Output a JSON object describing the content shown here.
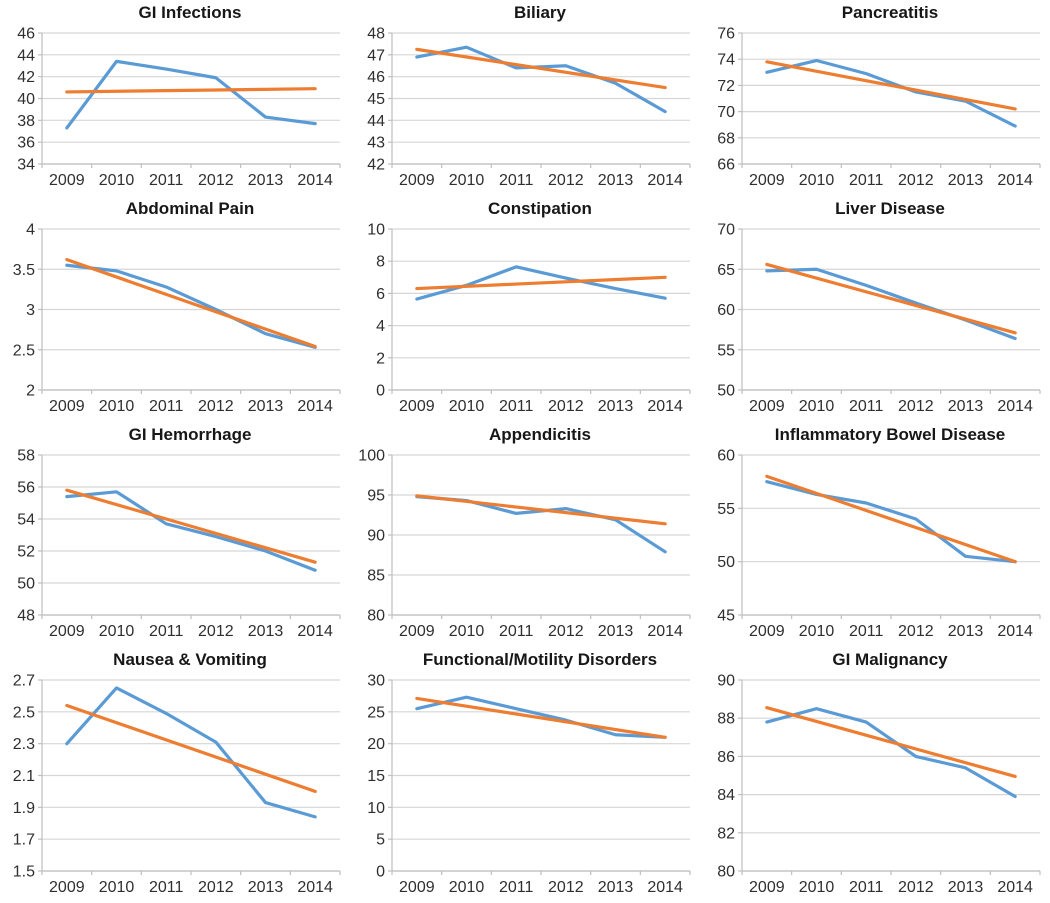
{
  "colors": {
    "series_blue": "#5B9BD5",
    "trend_orange": "#ED7D31",
    "gridline": "#D6D6D6",
    "axis": "#BFBFBF",
    "tick_text": "#2F2F2F",
    "title_text": "#171717",
    "background": "#FFFFFF"
  },
  "chart_data": [
    {
      "type": "line",
      "title": "GI Infections",
      "categories": [
        "2009",
        "2010",
        "2011",
        "2012",
        "2013",
        "2014"
      ],
      "ylim": [
        34,
        46
      ],
      "yticks": [
        "34",
        "36",
        "38",
        "40",
        "42",
        "44",
        "46"
      ],
      "grid": true,
      "legend": "none",
      "series": [
        {
          "name": "observed",
          "role": "data",
          "values": [
            37.3,
            43.4,
            42.7,
            41.9,
            38.3,
            37.7
          ]
        },
        {
          "name": "linear-trend",
          "role": "trend",
          "values": [
            40.6,
            40.9
          ]
        }
      ]
    },
    {
      "type": "line",
      "title": "Biliary",
      "categories": [
        "2009",
        "2010",
        "2011",
        "2012",
        "2013",
        "2014"
      ],
      "ylim": [
        42,
        48
      ],
      "yticks": [
        "42",
        "43",
        "44",
        "45",
        "46",
        "47",
        "48"
      ],
      "grid": true,
      "legend": "none",
      "series": [
        {
          "name": "observed",
          "role": "data",
          "values": [
            46.9,
            47.35,
            46.4,
            46.5,
            45.7,
            44.4
          ]
        },
        {
          "name": "linear-trend",
          "role": "trend",
          "values": [
            47.25,
            45.5
          ]
        }
      ]
    },
    {
      "type": "line",
      "title": "Pancreatitis",
      "categories": [
        "2009",
        "2010",
        "2011",
        "2012",
        "2013",
        "2014"
      ],
      "ylim": [
        66,
        76
      ],
      "yticks": [
        "66",
        "68",
        "70",
        "72",
        "74",
        "76"
      ],
      "grid": true,
      "legend": "none",
      "series": [
        {
          "name": "observed",
          "role": "data",
          "values": [
            73.0,
            73.9,
            72.9,
            71.5,
            70.8,
            68.9
          ]
        },
        {
          "name": "linear-trend",
          "role": "trend",
          "values": [
            73.8,
            70.2
          ]
        }
      ]
    },
    {
      "type": "line",
      "title": "Abdominal Pain",
      "categories": [
        "2009",
        "2010",
        "2011",
        "2012",
        "2013",
        "2014"
      ],
      "ylim": [
        2,
        4
      ],
      "yticks": [
        "2",
        "2.5",
        "3",
        "3.5",
        "4"
      ],
      "grid": true,
      "legend": "none",
      "series": [
        {
          "name": "observed",
          "role": "data",
          "values": [
            3.55,
            3.48,
            3.28,
            3.0,
            2.7,
            2.53
          ]
        },
        {
          "name": "linear-trend",
          "role": "trend",
          "values": [
            3.62,
            2.54
          ]
        }
      ]
    },
    {
      "type": "line",
      "title": "Constipation",
      "categories": [
        "2009",
        "2010",
        "2011",
        "2012",
        "2013",
        "2014"
      ],
      "ylim": [
        0,
        10
      ],
      "yticks": [
        "0",
        "2",
        "4",
        "6",
        "8",
        "10"
      ],
      "grid": true,
      "legend": "none",
      "series": [
        {
          "name": "observed",
          "role": "data",
          "values": [
            5.65,
            6.5,
            7.65,
            6.95,
            6.3,
            5.7
          ]
        },
        {
          "name": "linear-trend",
          "role": "trend",
          "values": [
            6.3,
            7.0
          ]
        }
      ]
    },
    {
      "type": "line",
      "title": "Liver Disease",
      "categories": [
        "2009",
        "2010",
        "2011",
        "2012",
        "2013",
        "2014"
      ],
      "ylim": [
        50,
        70
      ],
      "yticks": [
        "50",
        "55",
        "60",
        "65",
        "70"
      ],
      "grid": true,
      "legend": "none",
      "series": [
        {
          "name": "observed",
          "role": "data",
          "values": [
            64.8,
            65.0,
            63.0,
            60.8,
            58.7,
            56.4
          ]
        },
        {
          "name": "linear-trend",
          "role": "trend",
          "values": [
            65.6,
            57.1
          ]
        }
      ]
    },
    {
      "type": "line",
      "title": "GI Hemorrhage",
      "categories": [
        "2009",
        "2010",
        "2011",
        "2012",
        "2013",
        "2014"
      ],
      "ylim": [
        48,
        58
      ],
      "yticks": [
        "48",
        "50",
        "52",
        "54",
        "56",
        "58"
      ],
      "grid": true,
      "legend": "none",
      "series": [
        {
          "name": "observed",
          "role": "data",
          "values": [
            55.4,
            55.7,
            53.7,
            52.9,
            52.0,
            50.8
          ]
        },
        {
          "name": "linear-trend",
          "role": "trend",
          "values": [
            55.8,
            51.3
          ]
        }
      ]
    },
    {
      "type": "line",
      "title": "Appendicitis",
      "categories": [
        "2009",
        "2010",
        "2011",
        "2012",
        "2013",
        "2014"
      ],
      "ylim": [
        80,
        100
      ],
      "yticks": [
        "80",
        "85",
        "90",
        "95",
        "100"
      ],
      "grid": true,
      "legend": "none",
      "series": [
        {
          "name": "observed",
          "role": "data",
          "values": [
            94.8,
            94.3,
            92.7,
            93.3,
            91.9,
            87.9
          ]
        },
        {
          "name": "linear-trend",
          "role": "trend",
          "values": [
            94.9,
            91.4
          ]
        }
      ]
    },
    {
      "type": "line",
      "title": "Inflammatory Bowel Disease",
      "categories": [
        "2009",
        "2010",
        "2011",
        "2012",
        "2013",
        "2014"
      ],
      "ylim": [
        45,
        60
      ],
      "yticks": [
        "45",
        "50",
        "55",
        "60"
      ],
      "grid": true,
      "legend": "none",
      "series": [
        {
          "name": "observed",
          "role": "data",
          "values": [
            57.5,
            56.3,
            55.5,
            54.0,
            50.5,
            50.0
          ]
        },
        {
          "name": "linear-trend",
          "role": "trend",
          "values": [
            58.0,
            50.0
          ]
        }
      ]
    },
    {
      "type": "line",
      "title": "Nausea & Vomiting",
      "categories": [
        "2009",
        "2010",
        "2011",
        "2012",
        "2013",
        "2014"
      ],
      "ylim": [
        1.5,
        2.7
      ],
      "yticks": [
        "1.5",
        "1.7",
        "1.9",
        "2.1",
        "2.3",
        "2.5",
        "2.7"
      ],
      "grid": true,
      "legend": "none",
      "series": [
        {
          "name": "observed",
          "role": "data",
          "values": [
            2.3,
            2.65,
            2.49,
            2.31,
            1.93,
            1.84
          ]
        },
        {
          "name": "linear-trend",
          "role": "trend",
          "values": [
            2.54,
            2.0
          ]
        }
      ]
    },
    {
      "type": "line",
      "title": "Functional/Motility Disorders",
      "categories": [
        "2009",
        "2010",
        "2011",
        "2012",
        "2013",
        "2014"
      ],
      "ylim": [
        0,
        30
      ],
      "yticks": [
        "0",
        "5",
        "10",
        "15",
        "20",
        "25",
        "30"
      ],
      "grid": true,
      "legend": "none",
      "series": [
        {
          "name": "observed",
          "role": "data",
          "values": [
            25.5,
            27.3,
            25.5,
            23.7,
            21.4,
            21.0
          ]
        },
        {
          "name": "linear-trend",
          "role": "trend",
          "values": [
            27.1,
            21.0
          ]
        }
      ]
    },
    {
      "type": "line",
      "title": "GI Malignancy",
      "categories": [
        "2009",
        "2010",
        "2011",
        "2012",
        "2013",
        "2014"
      ],
      "ylim": [
        80,
        90
      ],
      "yticks": [
        "80",
        "82",
        "84",
        "86",
        "88",
        "90"
      ],
      "grid": true,
      "legend": "none",
      "series": [
        {
          "name": "observed",
          "role": "data",
          "values": [
            87.8,
            88.5,
            87.8,
            86.0,
            85.4,
            83.9
          ]
        },
        {
          "name": "linear-trend",
          "role": "trend",
          "values": [
            88.55,
            84.95
          ]
        }
      ]
    }
  ]
}
